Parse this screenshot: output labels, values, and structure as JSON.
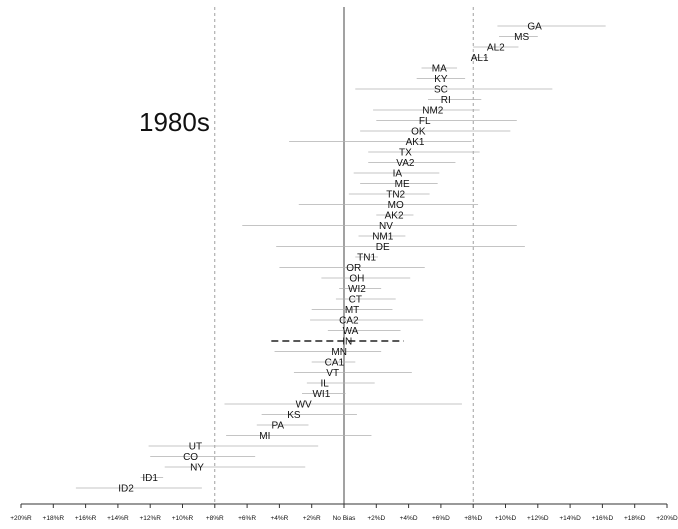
{
  "chart_data": {
    "type": "scatter",
    "title": "",
    "annotation": "1980s",
    "xlim": [
      -20,
      20
    ],
    "x_ticks": [
      -20,
      -18,
      -16,
      -14,
      -12,
      -10,
      -8,
      -6,
      -4,
      -2,
      0,
      2,
      4,
      6,
      8,
      10,
      12,
      14,
      16,
      18,
      20
    ],
    "x_tick_labels": [
      "+20%R",
      "+18%R",
      "+16%R",
      "+14%R",
      "+12%R",
      "+10%R",
      "+8%R",
      "+6%R",
      "+4%R",
      "+2%R",
      "No Bias",
      "+2%D",
      "+4%D",
      "+6%D",
      "+8%D",
      "+10%D",
      "+12%D",
      "+14%D",
      "+16%D",
      "+18%D",
      "+20%D"
    ],
    "reference_lines": [
      -8,
      0,
      8
    ],
    "interval_note": "each row: estimate with a horizontal interval (low, high); highlighted row drawn as a dashed black line",
    "points": [
      {
        "label": "GA",
        "value": 11.8,
        "low": 9.5,
        "high": 16.2
      },
      {
        "label": "MS",
        "value": 11.0,
        "low": 9.6,
        "high": 12.0
      },
      {
        "label": "AL2",
        "value": 9.4,
        "low": 8.0,
        "high": 10.8
      },
      {
        "label": "AL1",
        "value": 8.4,
        "low": 7.9,
        "high": 8.9
      },
      {
        "label": "MA",
        "value": 5.9,
        "low": 4.8,
        "high": 7.0
      },
      {
        "label": "KY",
        "value": 6.0,
        "low": 4.5,
        "high": 7.5
      },
      {
        "label": "SC",
        "value": 6.0,
        "low": 0.7,
        "high": 12.9
      },
      {
        "label": "RI",
        "value": 6.3,
        "low": 5.2,
        "high": 8.5
      },
      {
        "label": "NM2",
        "value": 5.5,
        "low": 1.8,
        "high": 8.4
      },
      {
        "label": "FL",
        "value": 5.0,
        "low": 2.0,
        "high": 10.7
      },
      {
        "label": "OK",
        "value": 4.6,
        "low": 1.0,
        "high": 10.3
      },
      {
        "label": "AK1",
        "value": 4.4,
        "low": -3.4,
        "high": 7.9
      },
      {
        "label": "TX",
        "value": 3.8,
        "low": 1.5,
        "high": 8.4
      },
      {
        "label": "VA2",
        "value": 3.8,
        "low": 1.5,
        "high": 6.9
      },
      {
        "label": "IA",
        "value": 3.3,
        "low": 0.6,
        "high": 5.9
      },
      {
        "label": "ME",
        "value": 3.6,
        "low": 1.0,
        "high": 5.8
      },
      {
        "label": "TN2",
        "value": 3.2,
        "low": 0.3,
        "high": 5.3
      },
      {
        "label": "MO",
        "value": 3.2,
        "low": -2.8,
        "high": 8.3
      },
      {
        "label": "AK2",
        "value": 3.1,
        "low": 2.0,
        "high": 4.3
      },
      {
        "label": "NV",
        "value": 2.6,
        "low": -6.3,
        "high": 10.7
      },
      {
        "label": "NM1",
        "value": 2.4,
        "low": 0.9,
        "high": 3.8
      },
      {
        "label": "DE",
        "value": 2.4,
        "low": -4.2,
        "high": 11.2
      },
      {
        "label": "TN1",
        "value": 1.4,
        "low": 0.7,
        "high": 2.1
      },
      {
        "label": "OR",
        "value": 0.6,
        "low": -4.0,
        "high": 5.0
      },
      {
        "label": "OH",
        "value": 0.8,
        "low": -1.4,
        "high": 4.1
      },
      {
        "label": "WI2",
        "value": 0.8,
        "low": -0.3,
        "high": 2.3
      },
      {
        "label": "CT",
        "value": 0.7,
        "low": -0.5,
        "high": 3.2
      },
      {
        "label": "MT",
        "value": 0.5,
        "low": -2.0,
        "high": 3.0
      },
      {
        "label": "CA2",
        "value": 0.3,
        "low": -2.1,
        "high": 4.9
      },
      {
        "label": "WA",
        "value": 0.4,
        "low": -1.0,
        "high": 3.5
      },
      {
        "label": "IN",
        "value": 0.2,
        "low": -4.5,
        "high": 3.7,
        "highlight": true
      },
      {
        "label": "MN",
        "value": -0.3,
        "low": -4.3,
        "high": 2.3
      },
      {
        "label": "CA1",
        "value": -0.6,
        "low": -2.0,
        "high": 0.7
      },
      {
        "label": "VT",
        "value": -0.7,
        "low": -3.1,
        "high": 4.2
      },
      {
        "label": "IL",
        "value": -1.2,
        "low": -2.3,
        "high": 1.9
      },
      {
        "label": "WI1",
        "value": -1.4,
        "low": -2.6,
        "high": 0.1
      },
      {
        "label": "WV",
        "value": -2.5,
        "low": -7.4,
        "high": 7.3
      },
      {
        "label": "KS",
        "value": -3.1,
        "low": -5.1,
        "high": 0.8
      },
      {
        "label": "PA",
        "value": -4.1,
        "low": -5.4,
        "high": -2.2
      },
      {
        "label": "MI",
        "value": -4.9,
        "low": -7.3,
        "high": 1.7
      },
      {
        "label": "UT",
        "value": -9.2,
        "low": -12.1,
        "high": -1.6
      },
      {
        "label": "CO",
        "value": -9.5,
        "low": -12.0,
        "high": -5.5
      },
      {
        "label": "NY",
        "value": -9.1,
        "low": -11.1,
        "high": -2.4
      },
      {
        "label": "ID1",
        "value": -12.0,
        "low": -12.6,
        "high": -11.2
      },
      {
        "label": "ID2",
        "value": -13.5,
        "low": -16.6,
        "high": -8.8
      }
    ]
  }
}
